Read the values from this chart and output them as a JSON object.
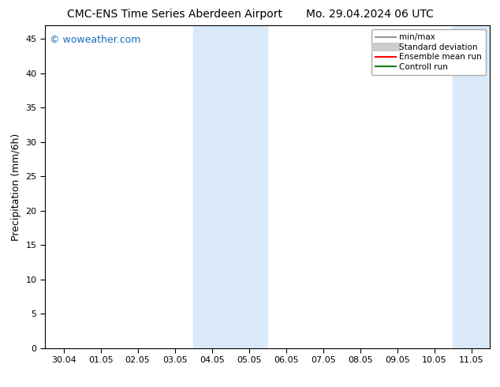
{
  "title_left": "CMC-ENS Time Series Aberdeen Airport",
  "title_right": "Mo. 29.04.2024 06 UTC",
  "ylabel": "Precipitation (mm/6h)",
  "watermark": "© woweather.com",
  "watermark_color": "#1a6abf",
  "background_color": "#ffffff",
  "plot_bg_color": "#ffffff",
  "shaded_band_color": "#daeaf8",
  "xlim_start": -0.5,
  "xlim_end": 11.5,
  "ylim_bottom": 0,
  "ylim_top": 47,
  "yticks": [
    0,
    5,
    10,
    15,
    20,
    25,
    30,
    35,
    40,
    45
  ],
  "xtick_labels": [
    "30.04",
    "01.05",
    "02.05",
    "03.05",
    "04.05",
    "05.05",
    "06.05",
    "07.05",
    "08.05",
    "09.05",
    "10.05",
    "11.05"
  ],
  "shaded_bands": [
    {
      "x_start": 3.5,
      "x_end": 5.5
    },
    {
      "x_start": 10.5,
      "x_end": 11.5
    }
  ],
  "legend_items": [
    {
      "label": "min/max",
      "color": "#999999",
      "lw": 1.5
    },
    {
      "label": "Standard deviation",
      "color": "#cccccc",
      "lw": 8
    },
    {
      "label": "Ensemble mean run",
      "color": "#ff0000",
      "lw": 1.5
    },
    {
      "label": "Controll run",
      "color": "#008000",
      "lw": 1.5
    }
  ],
  "title_fontsize": 10,
  "tick_fontsize": 8,
  "ylabel_fontsize": 9,
  "watermark_fontsize": 9,
  "legend_fontsize": 7.5
}
